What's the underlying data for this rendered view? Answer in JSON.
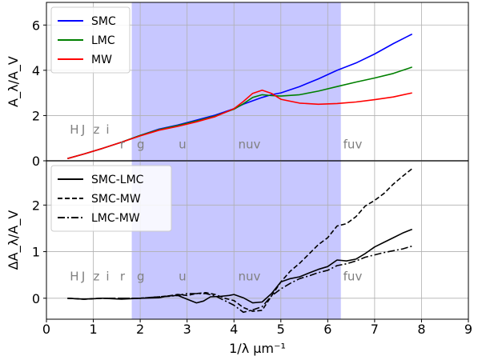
{
  "chart_data": [
    {
      "type": "line",
      "ylabel": "A_λ/A_V",
      "ylim": [
        0,
        7
      ],
      "yticks": [
        "0",
        "2",
        "4",
        "6"
      ],
      "xlim": [
        0,
        9
      ],
      "shaded_region": [
        1.82,
        6.28
      ],
      "grid": true,
      "legend_position": "top-left",
      "band_labels": [
        {
          "text": "H",
          "x": 0.5,
          "y": 1.2
        },
        {
          "text": "J",
          "x": 0.75,
          "y": 1.2
        },
        {
          "text": "z",
          "x": 1.0,
          "y": 1.2
        },
        {
          "text": "i",
          "x": 1.27,
          "y": 1.2
        },
        {
          "text": "r",
          "x": 1.57,
          "y": 0.55
        },
        {
          "text": "g",
          "x": 1.93,
          "y": 0.55
        },
        {
          "text": "u",
          "x": 2.82,
          "y": 0.55
        },
        {
          "text": "nuv",
          "x": 4.09,
          "y": 0.55
        },
        {
          "text": "fuv",
          "x": 6.33,
          "y": 0.55
        }
      ],
      "series": [
        {
          "name": "SMC",
          "color": "#0000ff",
          "x": [
            0.45,
            0.8,
            1.2,
            1.6,
            2.0,
            2.4,
            2.8,
            3.2,
            3.6,
            4.0,
            4.2,
            4.4,
            4.6,
            4.8,
            5.0,
            5.4,
            5.8,
            6.2,
            6.6,
            7.0,
            7.4,
            7.8
          ],
          "y": [
            0.1,
            0.3,
            0.55,
            0.82,
            1.12,
            1.4,
            1.58,
            1.8,
            2.02,
            2.3,
            2.5,
            2.65,
            2.8,
            2.92,
            3.0,
            3.28,
            3.62,
            4.0,
            4.32,
            4.72,
            5.18,
            5.6
          ]
        },
        {
          "name": "LMC",
          "color": "#008000",
          "x": [
            0.45,
            0.8,
            1.2,
            1.6,
            2.0,
            2.4,
            2.8,
            3.2,
            3.6,
            4.0,
            4.2,
            4.4,
            4.6,
            4.8,
            5.0,
            5.4,
            5.8,
            6.2,
            6.6,
            7.0,
            7.4,
            7.8
          ],
          "y": [
            0.1,
            0.3,
            0.55,
            0.82,
            1.12,
            1.38,
            1.56,
            1.76,
            1.98,
            2.28,
            2.52,
            2.8,
            2.92,
            2.88,
            2.86,
            2.92,
            3.08,
            3.28,
            3.48,
            3.66,
            3.86,
            4.14
          ]
        },
        {
          "name": "MW",
          "color": "#ff0000",
          "x": [
            0.45,
            0.8,
            1.2,
            1.6,
            2.0,
            2.4,
            2.8,
            3.2,
            3.6,
            4.0,
            4.2,
            4.4,
            4.6,
            4.8,
            5.0,
            5.4,
            5.8,
            6.2,
            6.6,
            7.0,
            7.4,
            7.8
          ],
          "y": [
            0.1,
            0.3,
            0.55,
            0.82,
            1.1,
            1.35,
            1.52,
            1.72,
            1.95,
            2.3,
            2.62,
            2.98,
            3.12,
            2.98,
            2.72,
            2.55,
            2.5,
            2.53,
            2.6,
            2.7,
            2.82,
            3.0
          ]
        }
      ]
    },
    {
      "type": "line",
      "xlabel": "1/λ μm⁻¹",
      "ylabel": "ΔA_λ/A_V",
      "ylim": [
        -0.45,
        2.95
      ],
      "yticks": [
        "0",
        "1",
        "2"
      ],
      "xlim": [
        0,
        9
      ],
      "xticks": [
        "0",
        "1",
        "2",
        "3",
        "4",
        "5",
        "6",
        "7",
        "8",
        "9"
      ],
      "shaded_region": [
        1.82,
        6.28
      ],
      "grid": true,
      "legend_position": "top-left",
      "band_labels": [
        {
          "text": "H",
          "x": 0.5,
          "y": 0.38
        },
        {
          "text": "J",
          "x": 0.75,
          "y": 0.38
        },
        {
          "text": "z",
          "x": 1.0,
          "y": 0.38
        },
        {
          "text": "i",
          "x": 1.27,
          "y": 0.38
        },
        {
          "text": "r",
          "x": 1.57,
          "y": 0.38
        },
        {
          "text": "g",
          "x": 1.93,
          "y": 0.38
        },
        {
          "text": "u",
          "x": 2.82,
          "y": 0.38
        },
        {
          "text": "nuv",
          "x": 4.09,
          "y": 0.38
        },
        {
          "text": "fuv",
          "x": 6.33,
          "y": 0.38
        }
      ],
      "series": [
        {
          "name": "SMC-LMC",
          "dash": "solid",
          "x": [
            0.45,
            0.8,
            1.2,
            1.6,
            2.0,
            2.4,
            2.6,
            2.8,
            3.0,
            3.2,
            3.35,
            3.5,
            3.7,
            3.9,
            4.0,
            4.2,
            4.4,
            4.6,
            4.8,
            5.0,
            5.2,
            5.4,
            5.6,
            5.8,
            6.0,
            6.2,
            6.4,
            6.6,
            6.8,
            7.0,
            7.2,
            7.4,
            7.6,
            7.8
          ],
          "y": [
            0.0,
            -0.02,
            0.0,
            -0.02,
            0.0,
            0.01,
            0.05,
            0.06,
            -0.02,
            -0.1,
            -0.06,
            0.03,
            0.04,
            0.06,
            0.08,
            0.01,
            -0.1,
            -0.08,
            0.1,
            0.35,
            0.42,
            0.46,
            0.54,
            0.62,
            0.68,
            0.82,
            0.8,
            0.84,
            0.96,
            1.1,
            1.2,
            1.3,
            1.4,
            1.48
          ]
        },
        {
          "name": "SMC-MW",
          "dash": "dashed",
          "x": [
            0.45,
            0.8,
            1.2,
            1.6,
            2.0,
            2.4,
            2.6,
            2.8,
            3.0,
            3.2,
            3.4,
            3.6,
            3.8,
            4.0,
            4.2,
            4.4,
            4.6,
            4.8,
            5.0,
            5.2,
            5.4,
            5.6,
            5.8,
            6.0,
            6.2,
            6.4,
            6.6,
            6.8,
            7.0,
            7.2,
            7.4,
            7.6,
            7.8
          ],
          "y": [
            0.0,
            -0.02,
            0.0,
            0.0,
            0.0,
            0.03,
            0.05,
            0.08,
            0.06,
            0.1,
            0.12,
            0.08,
            0.0,
            -0.05,
            -0.2,
            -0.28,
            -0.26,
            0.05,
            0.35,
            0.58,
            0.75,
            0.95,
            1.15,
            1.3,
            1.55,
            1.6,
            1.75,
            1.98,
            2.1,
            2.25,
            2.45,
            2.62,
            2.78
          ]
        },
        {
          "name": "LMC-MW",
          "dash": "dashdot",
          "x": [
            0.45,
            0.8,
            1.2,
            1.6,
            2.0,
            2.4,
            2.6,
            2.8,
            3.0,
            3.2,
            3.4,
            3.6,
            3.8,
            4.0,
            4.2,
            4.4,
            4.6,
            4.8,
            5.0,
            5.2,
            5.4,
            5.6,
            5.8,
            6.0,
            6.2,
            6.4,
            6.6,
            6.8,
            7.0,
            7.2,
            7.4,
            7.6,
            7.8
          ],
          "y": [
            0.0,
            -0.02,
            0.0,
            0.0,
            0.0,
            0.03,
            0.04,
            0.06,
            0.1,
            0.1,
            0.1,
            0.05,
            -0.05,
            -0.15,
            -0.3,
            -0.25,
            -0.18,
            0.05,
            0.2,
            0.32,
            0.42,
            0.48,
            0.55,
            0.6,
            0.7,
            0.74,
            0.8,
            0.88,
            0.93,
            0.98,
            1.02,
            1.06,
            1.12
          ]
        }
      ]
    }
  ]
}
